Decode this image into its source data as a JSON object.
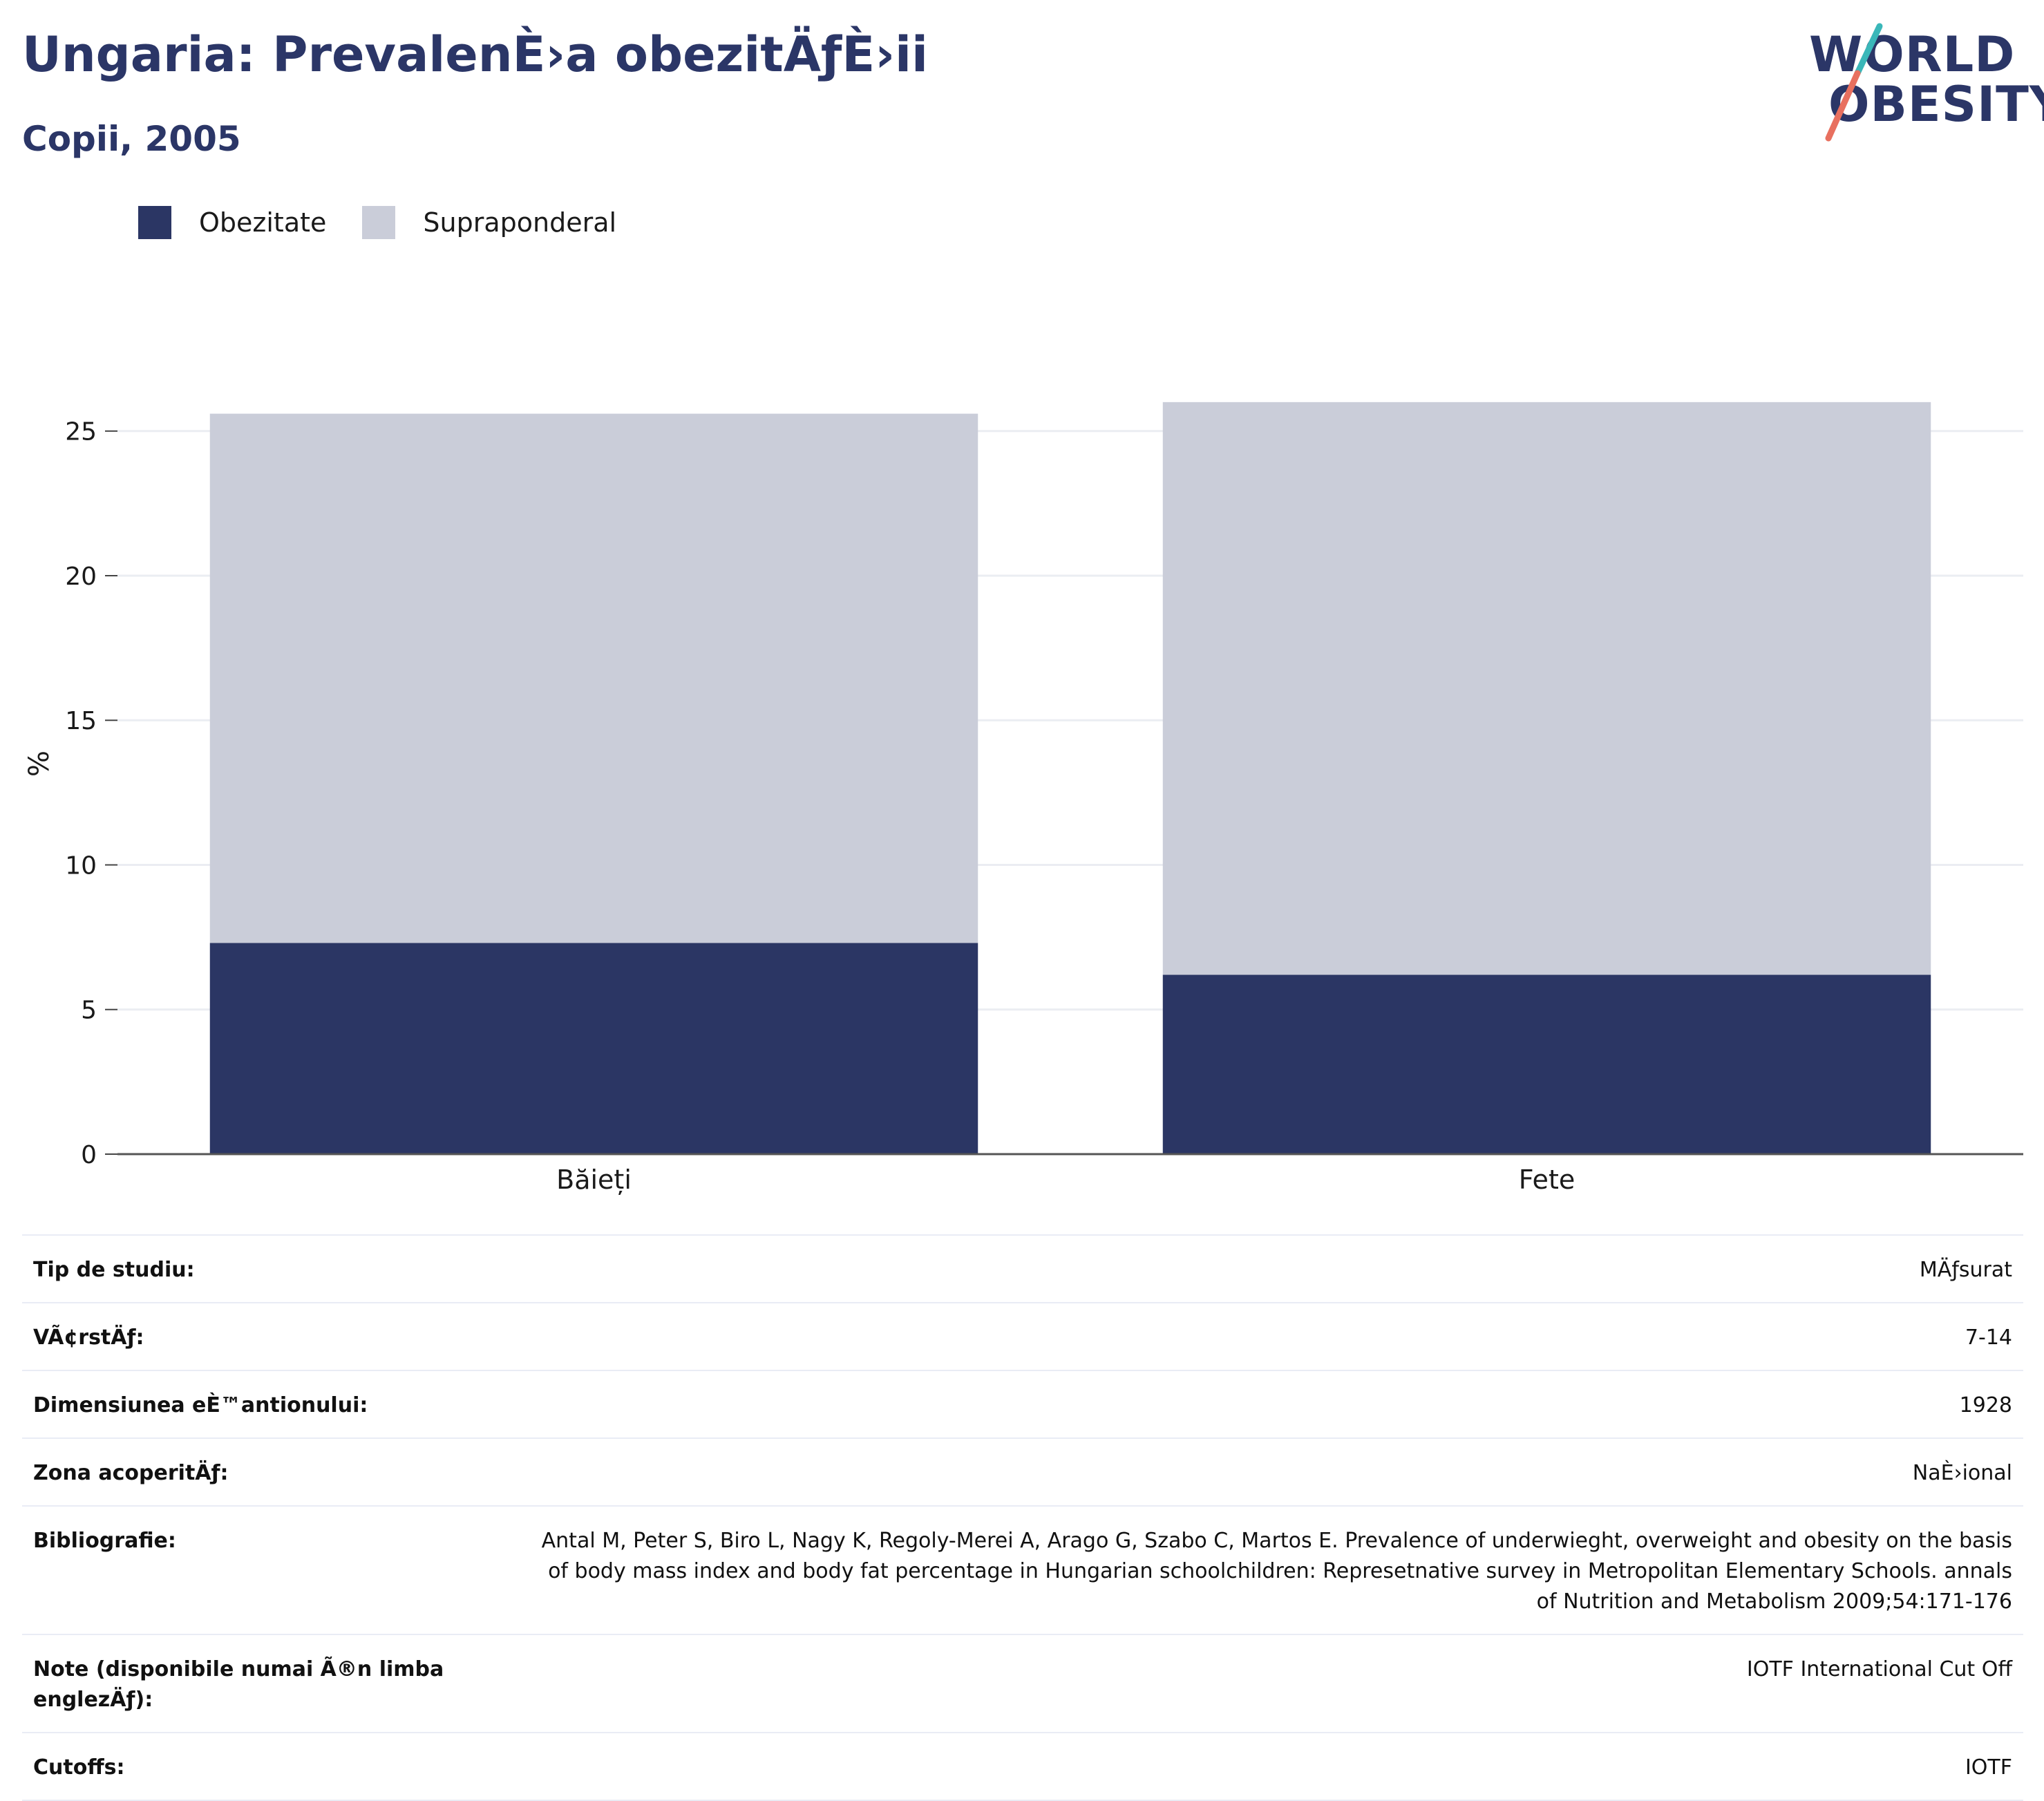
{
  "header": {
    "title": "Ungaria: PrevalenÈ›a obezitÄƒÈ›ii",
    "subtitle": "Copii, 2005"
  },
  "logo": {
    "line1": "WORLD",
    "line2": "OBESITY",
    "slash_top_color": "#3ab7b9",
    "slash_bottom_color": "#e8705f"
  },
  "legend": {
    "items": [
      {
        "label": "Obezitate",
        "color": "#2b3664"
      },
      {
        "label": "Supraponderal",
        "color": "#cacdd9"
      }
    ]
  },
  "chart_data": {
    "type": "bar",
    "stacked": true,
    "categories": [
      "Băieți",
      "Fete"
    ],
    "series": [
      {
        "name": "Obezitate",
        "values": [
          7.3,
          6.2
        ],
        "color": "#2b3664"
      },
      {
        "name": "Supraponderal",
        "values": [
          18.3,
          19.8
        ],
        "color": "#cacdd9"
      }
    ],
    "title": "Ungaria: PrevalenÈ›a obezitÄƒÈ›ii",
    "subtitle": "Copii, 2005",
    "xlabel": "",
    "ylabel": "%",
    "ylim": [
      0,
      27
    ],
    "yticks": [
      0,
      5,
      10,
      15,
      20,
      25
    ],
    "grid": true,
    "legend_position": "top-left"
  },
  "info": {
    "rows": [
      {
        "label": "Tip de studiu:",
        "value": "MÄƒsurat"
      },
      {
        "label": "VÃ¢rstÄƒ:",
        "value": "7-14"
      },
      {
        "label": "Dimensiunea eÈ™antionului:",
        "value": "1928"
      },
      {
        "label": "Zona acoperitÄƒ:",
        "value": "NaÈ›ional"
      },
      {
        "label": "Bibliografie:",
        "value": "Antal M, Peter S, Biro L, Nagy K, Regoly-Merei A, Arago G, Szabo C, Martos E. Prevalence of underwieght, overweight and obesity on the basis of body mass index and body fat percentage in Hungarian schoolchildren: Represetnative survey in Metropolitan Elementary Schools. annals of Nutrition and Metabolism 2009;54:171-176"
      },
      {
        "label": "Note (disponibile numai Ã®n limba englezÄƒ):",
        "value": "IOTF International Cut Off"
      },
      {
        "label": "Cutoffs:",
        "value": "IOTF"
      }
    ]
  }
}
